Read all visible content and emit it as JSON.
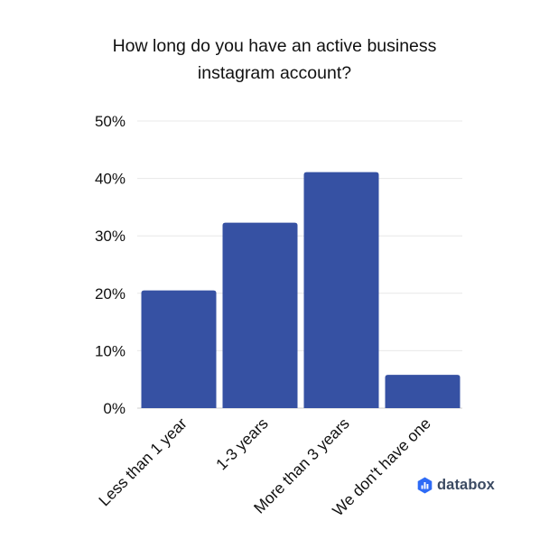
{
  "chart_data": {
    "type": "bar",
    "title_lines": [
      "How long do you have an active business",
      "instagram account?"
    ],
    "categories": [
      "Less than 1 year",
      "1-3 years",
      "More than 3 years",
      "We don't have one"
    ],
    "values": [
      20.5,
      32.3,
      41.1,
      5.8
    ],
    "unit": "%",
    "ylim": [
      0,
      50
    ],
    "yticks": [
      0,
      10,
      20,
      30,
      40,
      50
    ],
    "ytick_labels": [
      "0%",
      "10%",
      "20%",
      "30%",
      "40%",
      "50%"
    ],
    "grid": true,
    "legend": "none",
    "bar_color": "#3651a3",
    "grid_color": "#e8e8e8",
    "axis_color": "#cfcfcf"
  },
  "brand": {
    "name": "databox",
    "icon": "databox-logo-icon",
    "icon_color": "#2e6bf6"
  }
}
